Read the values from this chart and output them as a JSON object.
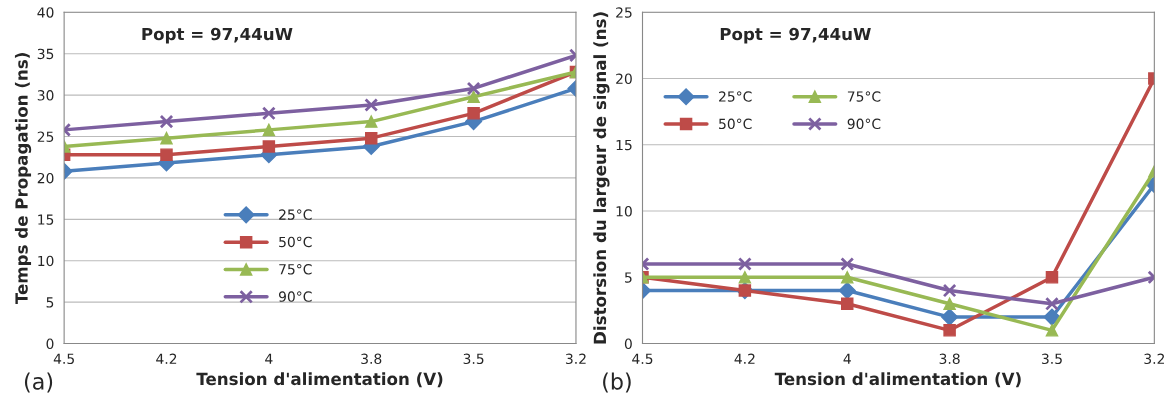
{
  "chart_data": [
    {
      "type": "line",
      "xlabel": "Tension d'alimentation (V)",
      "ylabel": "Temps de Propagation (ns)",
      "categories": [
        "4.5",
        "4.2",
        "4",
        "3.8",
        "3.5",
        "3.2"
      ],
      "ylim": [
        0,
        40
      ],
      "yticks": [
        0,
        5,
        10,
        15,
        20,
        25,
        30,
        35,
        40
      ],
      "grid": "y",
      "legend": "bottom",
      "annotations": [
        "Popt = 97,44uW",
        "(a)"
      ],
      "series": [
        {
          "name": "25°C",
          "color": "#4a7ebb",
          "marker": "diamond",
          "values": [
            20.8,
            21.8,
            22.8,
            23.8,
            26.8,
            30.8
          ]
        },
        {
          "name": "50°C",
          "color": "#be4b48",
          "marker": "square",
          "values": [
            22.8,
            22.8,
            23.8,
            24.8,
            27.8,
            32.8
          ]
        },
        {
          "name": "75°C",
          "color": "#98b954",
          "marker": "triangle",
          "values": [
            23.8,
            24.8,
            25.8,
            26.8,
            29.8,
            32.8
          ]
        },
        {
          "name": "90°C",
          "color": "#7d60a0",
          "marker": "cross",
          "values": [
            25.8,
            26.8,
            27.8,
            28.8,
            30.8,
            34.8
          ]
        }
      ]
    },
    {
      "type": "line",
      "xlabel": "Tension d'alimentation (V)",
      "ylabel": "Distorsion du largeur de signal (ns)",
      "categories": [
        "4.5",
        "4.2",
        "4",
        "3.8",
        "3.5",
        "3.2"
      ],
      "ylim": [
        0,
        25
      ],
      "yticks": [
        0,
        5,
        10,
        15,
        20,
        25
      ],
      "grid": "y",
      "legend": "top left",
      "annotations": [
        "Popt = 97,44uW",
        "(b)"
      ],
      "series": [
        {
          "name": "25°C",
          "color": "#4a7ebb",
          "marker": "diamond",
          "values": [
            4,
            4,
            4,
            2,
            2,
            12
          ]
        },
        {
          "name": "50°C",
          "color": "#be4b48",
          "marker": "square",
          "values": [
            5,
            4,
            3,
            1,
            5,
            20
          ]
        },
        {
          "name": "75°C",
          "color": "#98b954",
          "marker": "triangle",
          "values": [
            5,
            5,
            5,
            3,
            1,
            13
          ]
        },
        {
          "name": "90°C",
          "color": "#7d60a0",
          "marker": "cross",
          "values": [
            6,
            6,
            6,
            4,
            3,
            5
          ]
        }
      ]
    }
  ]
}
